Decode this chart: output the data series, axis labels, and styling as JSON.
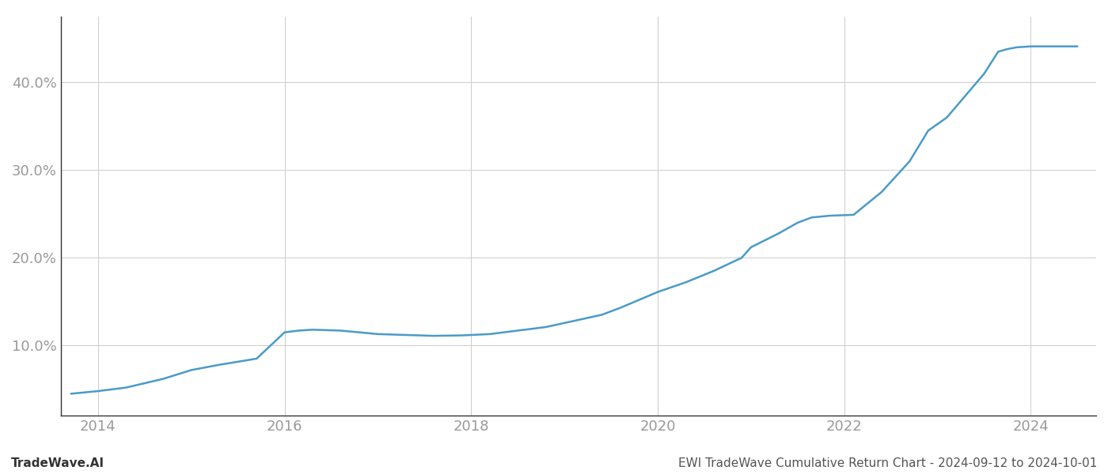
{
  "x_years": [
    2013.71,
    2014.0,
    2014.3,
    2014.7,
    2015.0,
    2015.3,
    2015.7,
    2016.0,
    2016.15,
    2016.3,
    2016.6,
    2017.0,
    2017.3,
    2017.6,
    2017.9,
    2018.2,
    2018.5,
    2018.8,
    2019.1,
    2019.4,
    2019.6,
    2019.8,
    2020.0,
    2020.3,
    2020.6,
    2020.9,
    2021.0,
    2021.15,
    2021.3,
    2021.5,
    2021.65,
    2021.85,
    2022.1,
    2022.4,
    2022.7,
    2022.9,
    2023.1,
    2023.3,
    2023.5,
    2023.65,
    2023.75,
    2023.85,
    2024.0,
    2024.2,
    2024.5
  ],
  "y_values": [
    4.5,
    4.8,
    5.2,
    6.2,
    7.2,
    7.8,
    8.5,
    11.5,
    11.7,
    11.8,
    11.7,
    11.3,
    11.2,
    11.1,
    11.15,
    11.3,
    11.7,
    12.1,
    12.8,
    13.5,
    14.3,
    15.2,
    16.1,
    17.2,
    18.5,
    20.0,
    21.2,
    22.0,
    22.8,
    24.0,
    24.6,
    24.8,
    24.9,
    27.5,
    31.0,
    34.5,
    36.0,
    38.5,
    41.0,
    43.5,
    43.8,
    44.0,
    44.1,
    44.1,
    44.1
  ],
  "line_color": "#4a9bc7",
  "line_width": 1.8,
  "ylabel_ticks": [
    10.0,
    20.0,
    30.0,
    40.0
  ],
  "xlim": [
    2013.6,
    2024.7
  ],
  "ylim": [
    2.0,
    47.5
  ],
  "xticks": [
    2014,
    2016,
    2018,
    2020,
    2022,
    2024
  ],
  "grid_color": "#cccccc",
  "grid_linewidth": 0.7,
  "background_color": "#ffffff",
  "footer_left": "TradeWave.AI",
  "footer_right": "EWI TradeWave Cumulative Return Chart - 2024-09-12 to 2024-10-01",
  "footer_fontsize": 11,
  "tick_fontsize": 13,
  "tick_color": "#999999",
  "spine_color": "#333333"
}
